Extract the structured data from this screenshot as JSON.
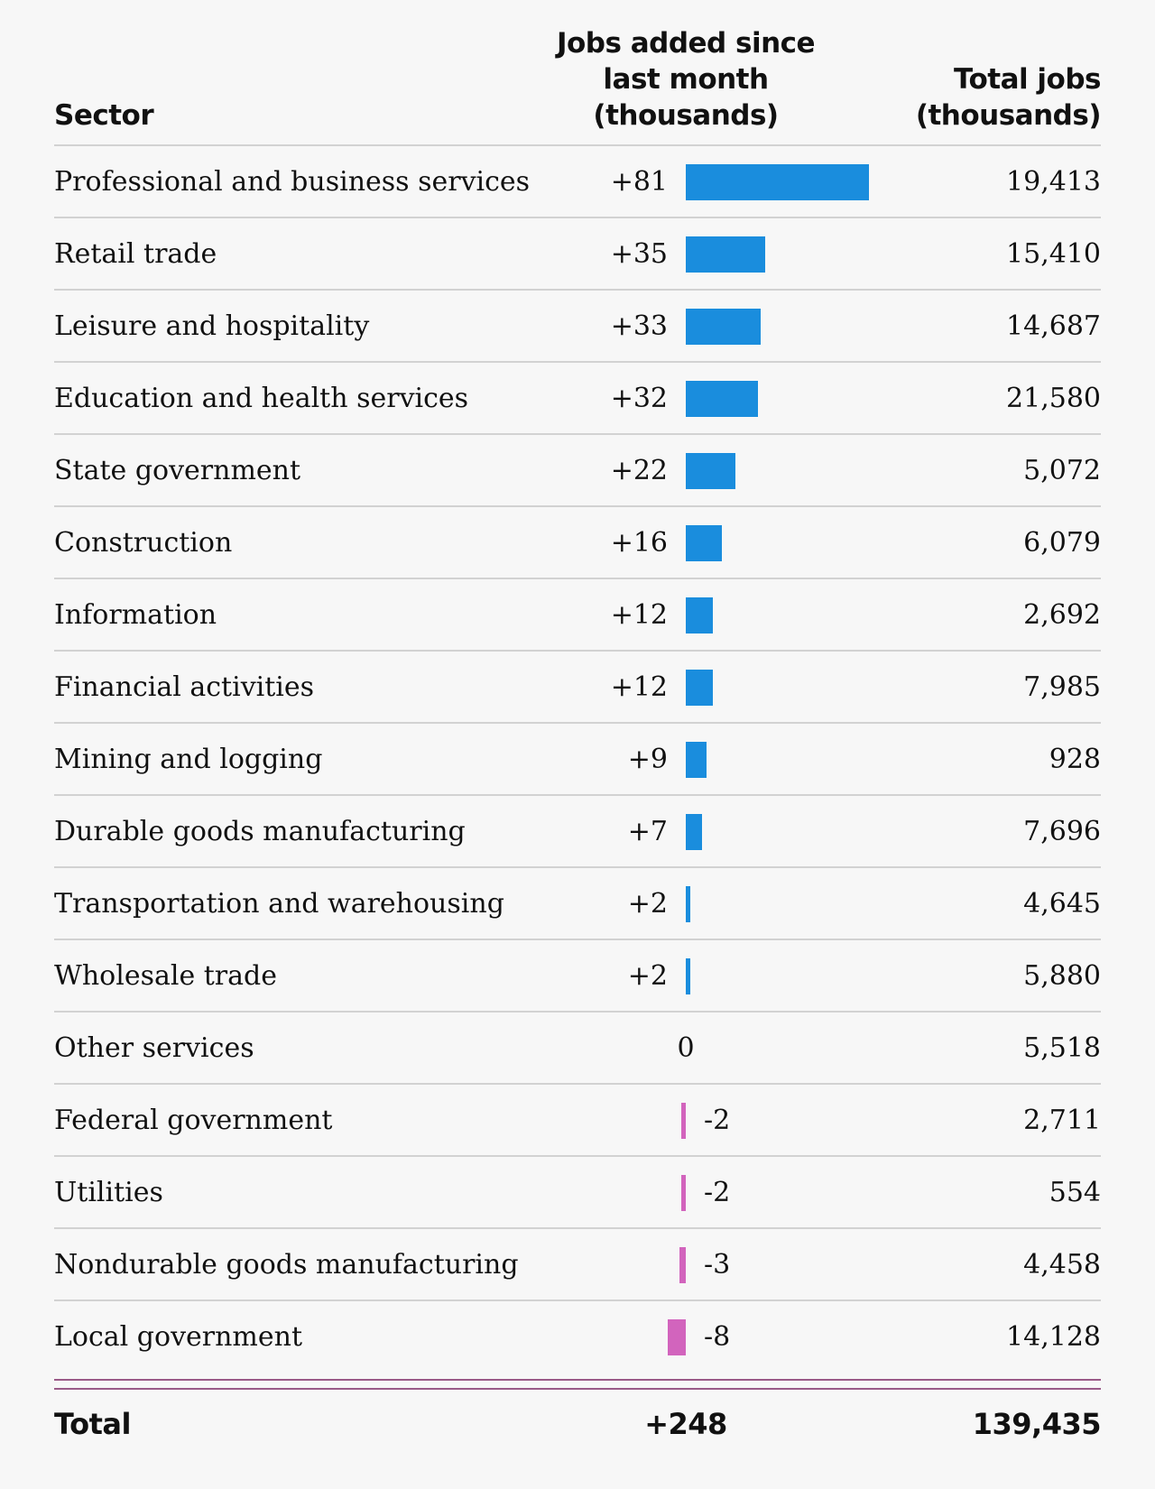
{
  "headers": {
    "sector": "Sector",
    "jobs_added": "Jobs added since\nlast month\n(thousands)",
    "total_jobs": "Total jobs\n(thousands)"
  },
  "colors": {
    "positive": "#1a8ddd",
    "negative": "#d264bd",
    "total_rule": "#9a5a88"
  },
  "chart_data": {
    "type": "table",
    "columns": [
      "Sector",
      "Jobs added since last month (thousands)",
      "Total jobs (thousands)"
    ],
    "rows": [
      {
        "sector": "Professional and business services",
        "change": 81,
        "change_label": "+81",
        "total": "19,413"
      },
      {
        "sector": "Retail trade",
        "change": 35,
        "change_label": "+35",
        "total": "15,410"
      },
      {
        "sector": "Leisure and hospitality",
        "change": 33,
        "change_label": "+33",
        "total": "14,687"
      },
      {
        "sector": "Education and health services",
        "change": 32,
        "change_label": "+32",
        "total": "21,580"
      },
      {
        "sector": "State government",
        "change": 22,
        "change_label": "+22",
        "total": "5,072"
      },
      {
        "sector": "Construction",
        "change": 16,
        "change_label": "+16",
        "total": "6,079"
      },
      {
        "sector": "Information",
        "change": 12,
        "change_label": "+12",
        "total": "2,692"
      },
      {
        "sector": "Financial activities",
        "change": 12,
        "change_label": "+12",
        "total": "7,985"
      },
      {
        "sector": "Mining and logging",
        "change": 9,
        "change_label": "+9",
        "total": "928"
      },
      {
        "sector": "Durable goods manufacturing",
        "change": 7,
        "change_label": "+7",
        "total": "7,696"
      },
      {
        "sector": "Transportation and warehousing",
        "change": 2,
        "change_label": "+2",
        "total": "4,645"
      },
      {
        "sector": "Wholesale trade",
        "change": 2,
        "change_label": "+2",
        "total": "5,880"
      },
      {
        "sector": "Other services",
        "change": 0,
        "change_label": "0",
        "total": "5,518"
      },
      {
        "sector": "Federal government",
        "change": -2,
        "change_label": "-2",
        "total": "2,711"
      },
      {
        "sector": "Utilities",
        "change": -2,
        "change_label": "-2",
        "total": "554"
      },
      {
        "sector": "Nondurable goods manufacturing",
        "change": -3,
        "change_label": "-3",
        "total": "4,458"
      },
      {
        "sector": "Local government",
        "change": -8,
        "change_label": "-8",
        "total": "14,128"
      }
    ],
    "total_row": {
      "label": "Total",
      "change": "+248",
      "total": "139,435"
    }
  }
}
